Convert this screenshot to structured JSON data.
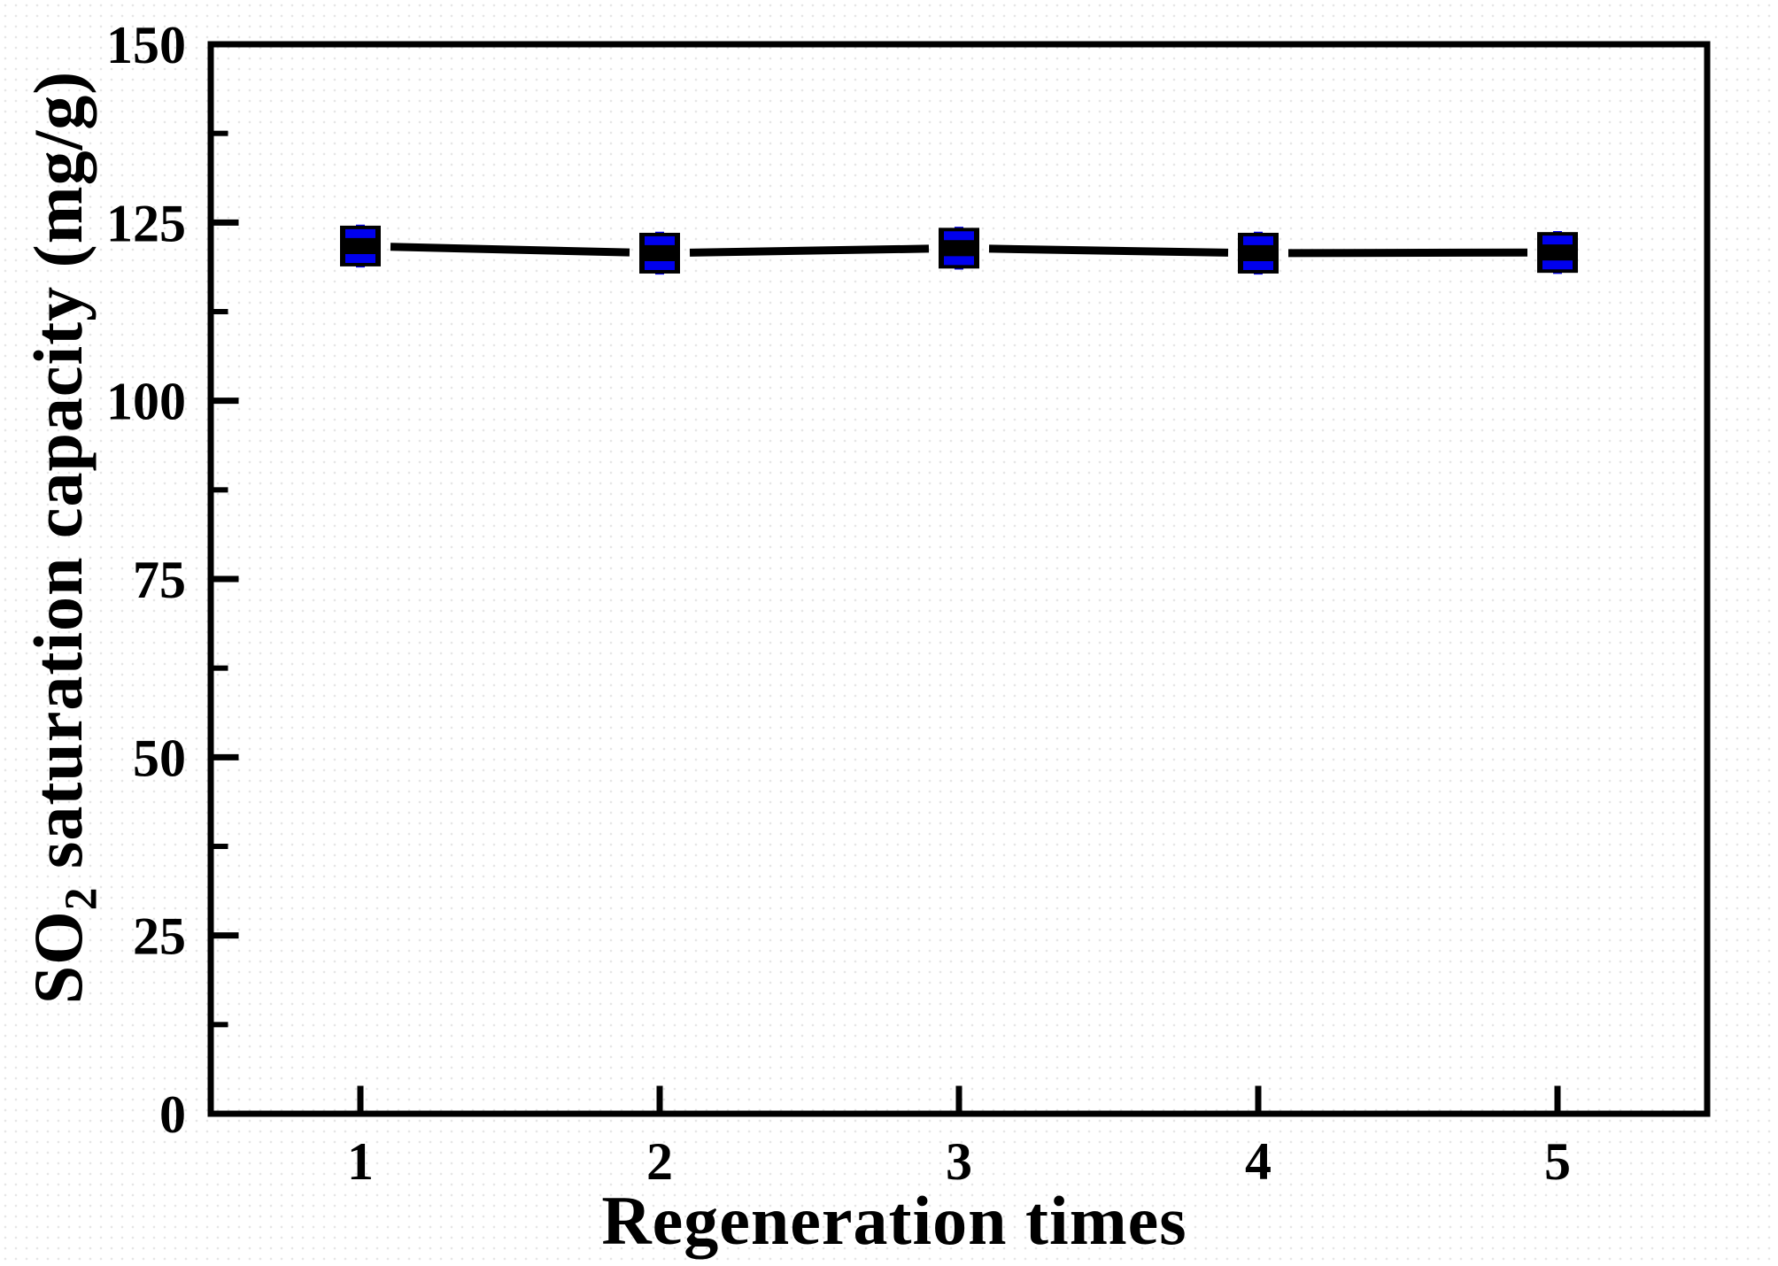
{
  "figure": {
    "background_color": "#ffffff",
    "texture_dot_color": "#e6e6e6",
    "frame_color": "#000000"
  },
  "chart_data": {
    "type": "line",
    "title": "",
    "xlabel": "Regeneration times",
    "ylabel": "SO2 saturation capacity (mg/g)",
    "ylabel_parts": {
      "pre": "SO",
      "sub": "2",
      "post": " saturation capacity (mg/g)"
    },
    "x": [
      1,
      2,
      3,
      4,
      5
    ],
    "series": [
      {
        "name": "SO2 saturation capacity",
        "values": [
          121.7,
          120.7,
          121.4,
          120.7,
          120.8
        ],
        "error_whisker_half": 3.0,
        "error_cap_position": 1.75,
        "marker": "square",
        "marker_color": "#000000",
        "line_color": "#000000",
        "error_color": "#0000ee"
      }
    ],
    "xlim": [
      0.5,
      5.5
    ],
    "ylim": [
      0,
      150
    ],
    "xticks": [
      1,
      2,
      3,
      4,
      5
    ],
    "xtick_labels": [
      "1",
      "2",
      "3",
      "4",
      "5"
    ],
    "yticks_major": [
      0,
      25,
      50,
      75,
      100,
      125,
      150
    ],
    "ytick_labels": [
      "0",
      "25",
      "50",
      "75",
      "100",
      "125",
      "150"
    ],
    "yticks_minor": [
      12.5,
      37.5,
      62.5,
      87.5,
      112.5,
      137.5
    ],
    "grid": false,
    "legend": "none",
    "tick_direction": "in",
    "frame": true
  }
}
